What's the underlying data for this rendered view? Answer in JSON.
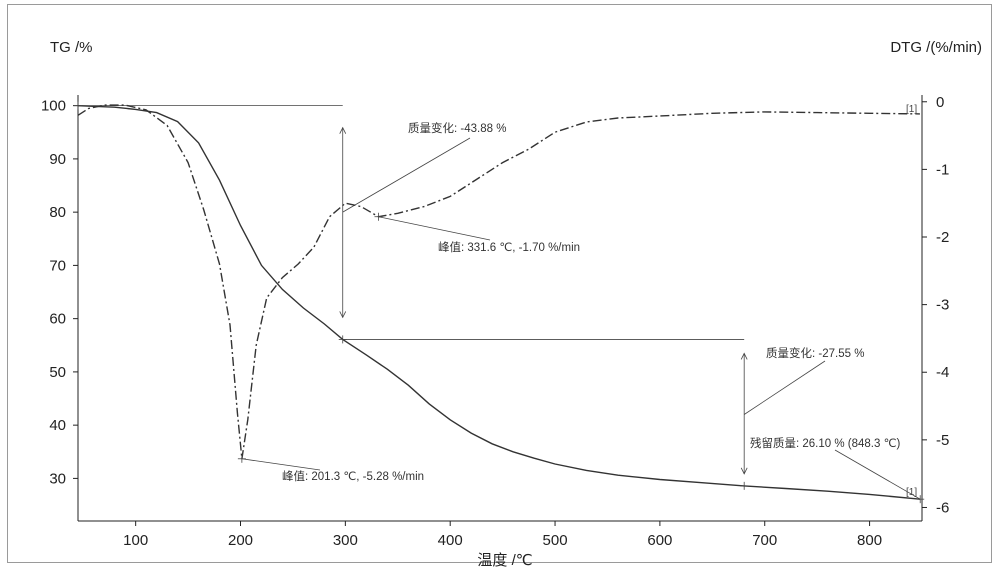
{
  "chart_data": {
    "type": "line",
    "left_axis_label": "TG /%",
    "right_axis_label": "DTG /(%/min)",
    "xlabel": "温度 /℃",
    "x_range": [
      45,
      850
    ],
    "y_left_range": [
      22,
      102
    ],
    "y_right_range": [
      -6.2,
      0.1
    ],
    "x_ticks": [
      100,
      200,
      300,
      400,
      500,
      600,
      700,
      800
    ],
    "y_left_ticks": [
      30,
      40,
      50,
      60,
      70,
      80,
      90,
      100
    ],
    "y_right_ticks": [
      0,
      -1,
      -2,
      -3,
      -4,
      -5,
      -6
    ],
    "grid": false,
    "series": [
      {
        "key": "tg",
        "axis": "left",
        "points": [
          [
            45,
            100
          ],
          [
            80,
            99.7
          ],
          [
            100,
            99.3
          ],
          [
            120,
            98.7
          ],
          [
            140,
            97
          ],
          [
            160,
            93
          ],
          [
            180,
            86
          ],
          [
            200,
            77.5
          ],
          [
            220,
            70
          ],
          [
            240,
            65.5
          ],
          [
            260,
            62
          ],
          [
            280,
            59
          ],
          [
            297.5,
            56.1
          ],
          [
            320,
            53.2
          ],
          [
            340,
            50.5
          ],
          [
            360,
            47.5
          ],
          [
            380,
            44
          ],
          [
            400,
            41
          ],
          [
            420,
            38.5
          ],
          [
            440,
            36.5
          ],
          [
            460,
            35
          ],
          [
            480,
            33.8
          ],
          [
            500,
            32.7
          ],
          [
            530,
            31.5
          ],
          [
            560,
            30.6
          ],
          [
            600,
            29.8
          ],
          [
            640,
            29.2
          ],
          [
            680.4,
            28.6
          ],
          [
            720,
            28.1
          ],
          [
            760,
            27.6
          ],
          [
            800,
            27
          ],
          [
            848.3,
            26.1
          ]
        ]
      },
      {
        "key": "dtg",
        "axis": "right",
        "points": [
          [
            45,
            -0.2
          ],
          [
            55,
            -0.1
          ],
          [
            70,
            -0.05
          ],
          [
            90,
            -0.05
          ],
          [
            110,
            -0.12
          ],
          [
            130,
            -0.35
          ],
          [
            150,
            -0.9
          ],
          [
            165,
            -1.6
          ],
          [
            180,
            -2.4
          ],
          [
            190,
            -3.3
          ],
          [
            197,
            -4.6
          ],
          [
            201.3,
            -5.28
          ],
          [
            207,
            -4.7
          ],
          [
            215,
            -3.6
          ],
          [
            225,
            -2.9
          ],
          [
            240,
            -2.6
          ],
          [
            255,
            -2.4
          ],
          [
            270,
            -2.15
          ],
          [
            285,
            -1.7
          ],
          [
            300,
            -1.5
          ],
          [
            315,
            -1.55
          ],
          [
            331.6,
            -1.7
          ],
          [
            350,
            -1.65
          ],
          [
            375,
            -1.55
          ],
          [
            400,
            -1.4
          ],
          [
            425,
            -1.15
          ],
          [
            450,
            -0.9
          ],
          [
            475,
            -0.7
          ],
          [
            500,
            -0.45
          ],
          [
            530,
            -0.3
          ],
          [
            560,
            -0.24
          ],
          [
            600,
            -0.21
          ],
          [
            650,
            -0.17
          ],
          [
            700,
            -0.15
          ],
          [
            750,
            -0.16
          ],
          [
            800,
            -0.17
          ],
          [
            848,
            -0.18
          ]
        ]
      }
    ],
    "annotations": {
      "step1": {
        "text": "质量变化: -43.88 %",
        "x_start": 45,
        "x_end": 297.5,
        "y_top": 100,
        "y_bottom": 56.1
      },
      "peak1": {
        "text": "峰值: 331.6 ℃, -1.70 %/min",
        "x": 331.6,
        "y": -1.7
      },
      "step2": {
        "text": "质量变化: -27.55 %",
        "x_start": 297.5,
        "x_end": 680.4,
        "y_top": 56.1,
        "y_bottom": 28.6
      },
      "peak2": {
        "text": "峰值: 201.3 ℃, -5.28 %/min",
        "x": 201.3,
        "y": -5.28
      },
      "residue": {
        "text": "残留质量: 26.10 % (848.3 ℃)",
        "x": 848.3,
        "y": 26.1
      },
      "curve_tag_top": "[1]",
      "curve_tag_bottom": "[1]"
    }
  }
}
